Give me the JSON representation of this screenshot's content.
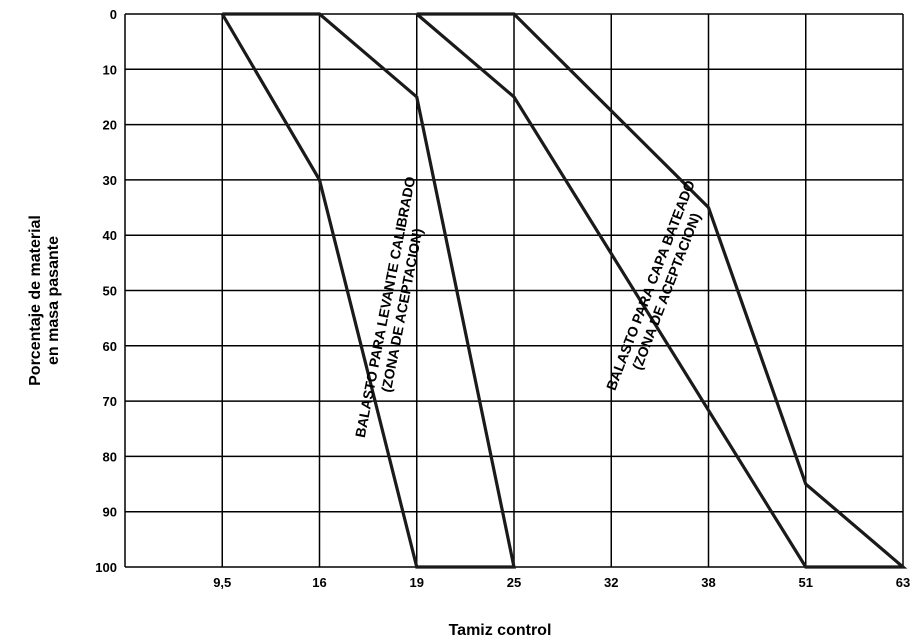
{
  "chart_data": {
    "type": "line",
    "title": "",
    "xlabel": "Tamiz control",
    "ylabel_lines": [
      "Porcentaje de material",
      "en masa pasante"
    ],
    "x_categories": [
      "",
      "9,5",
      "16",
      "19",
      "25",
      "32",
      "38",
      "51",
      "63"
    ],
    "y_ticks": [
      0,
      10,
      20,
      30,
      40,
      50,
      60,
      70,
      80,
      90,
      100
    ],
    "ylim": [
      0,
      100
    ],
    "y_inverted": true,
    "grid": true,
    "series": [
      {
        "name": "BALASTO PARA LEVANTE CALIBRADO (ZONA DE ACEPTACION)",
        "label_lines": [
          "BALASTO PARA LEVANTE CALIBRADO",
          "(ZONA DE ACEPTACION)"
        ],
        "boundary": [
          {
            "x": "9,5",
            "y": 0
          },
          {
            "x": "16",
            "y": 0
          },
          {
            "x": "19",
            "y": 15
          },
          {
            "x": "25",
            "y": 100
          },
          {
            "x": "19",
            "y": 100
          },
          {
            "x": "16",
            "y": 30
          },
          {
            "x": "9,5",
            "y": 0
          }
        ]
      },
      {
        "name": "BALASTO PARA CAPA BATEADO (ZONA DE ACEPTACION)",
        "label_lines": [
          "BALASTO PARA CAPA BATEADO",
          "(ZONA DE ACEPTACION)"
        ],
        "boundary": [
          {
            "x": "19",
            "y": 0
          },
          {
            "x": "25",
            "y": 0
          },
          {
            "x": "38",
            "y": 35
          },
          {
            "x": "51",
            "y": 85
          },
          {
            "x": "63",
            "y": 100
          },
          {
            "x": "51",
            "y": 100
          },
          {
            "x": "25",
            "y": 15
          },
          {
            "x": "19",
            "y": 0
          }
        ]
      }
    ]
  }
}
